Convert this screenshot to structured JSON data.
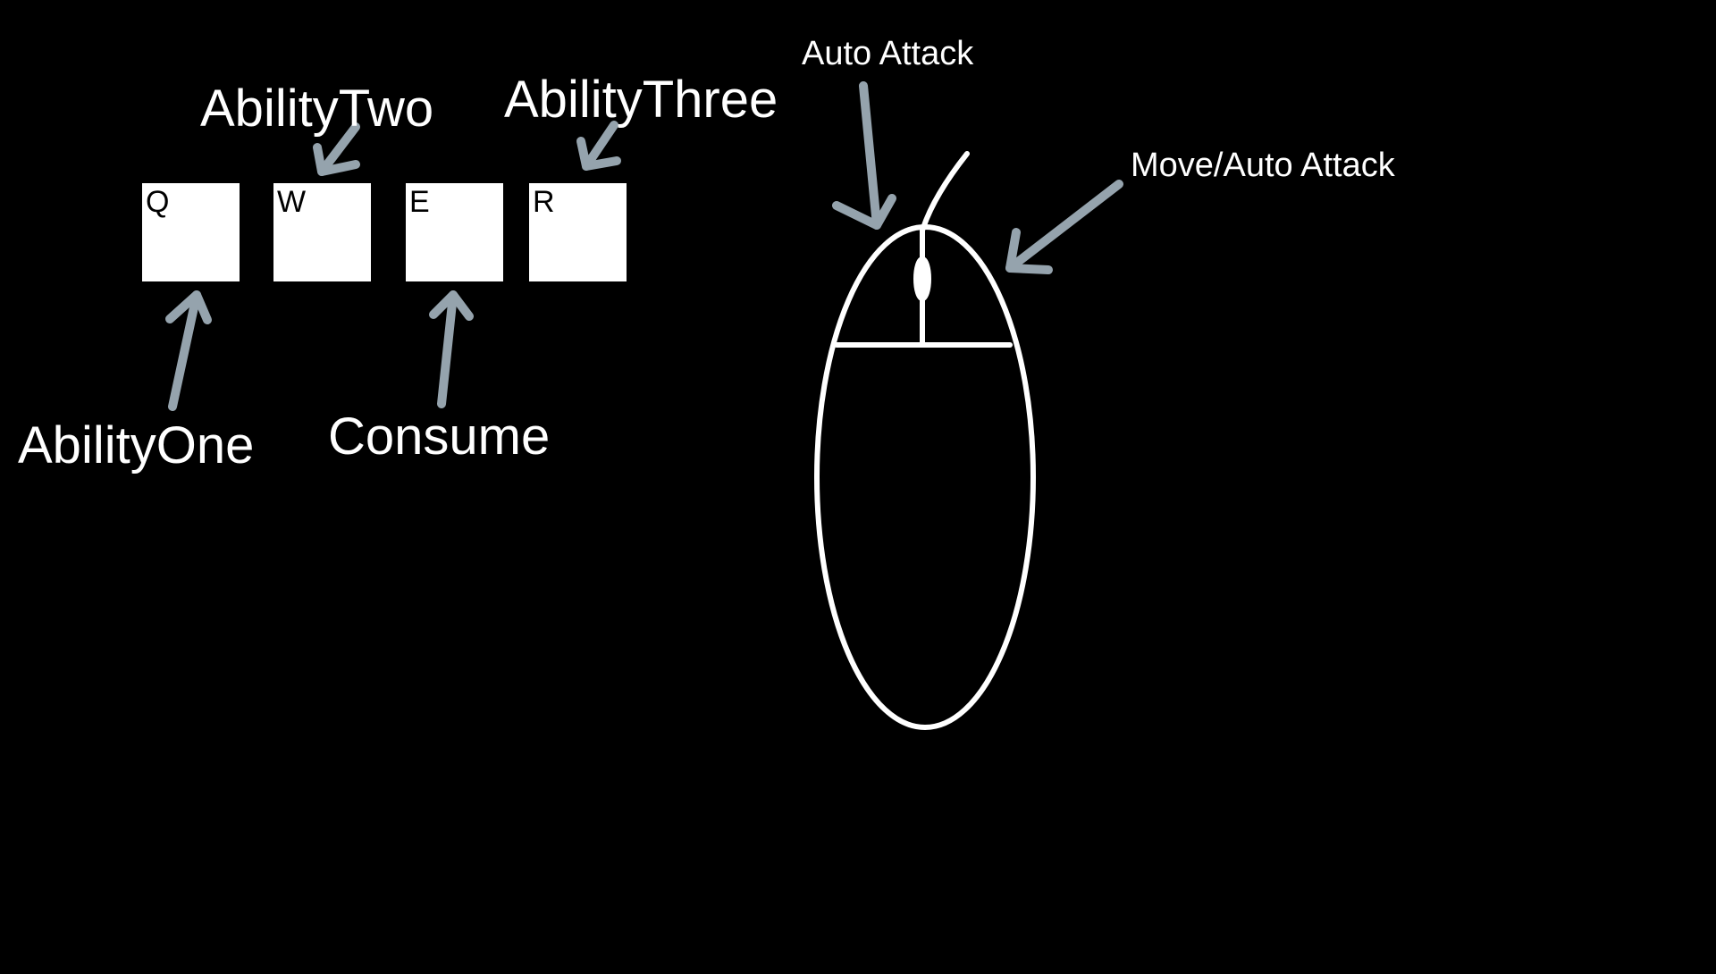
{
  "background_color": "#000000",
  "arrow_color": "#95a3ad",
  "keys": [
    {
      "letter": "Q"
    },
    {
      "letter": "W"
    },
    {
      "letter": "E"
    },
    {
      "letter": "R"
    }
  ],
  "labels": {
    "ability_one": "AbilityOne",
    "ability_two": "AbilityTwo",
    "ability_three": "AbilityThree",
    "consume": "Consume",
    "auto_attack": "Auto Attack",
    "move_auto_attack": "Move/Auto Attack"
  }
}
